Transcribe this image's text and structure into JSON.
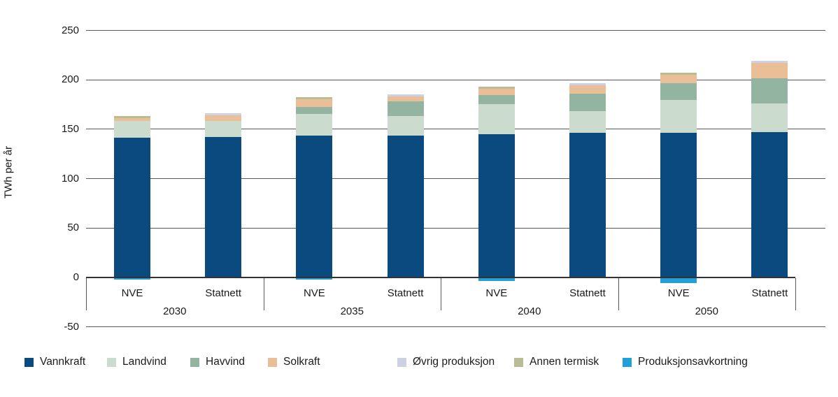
{
  "chart_data": {
    "type": "bar",
    "stacked": true,
    "ylabel": "TWh per år",
    "ylim": [
      -50,
      250
    ],
    "yticks": [
      250,
      200,
      150,
      100,
      50,
      0,
      -50
    ],
    "grid": "horizontal",
    "legend_position": "bottom",
    "groups": [
      "2030",
      "2035",
      "2040",
      "2050"
    ],
    "bar_labels": [
      "NVE",
      "Statnett",
      "NVE",
      "Statnett",
      "NVE",
      "Statnett",
      "NVE",
      "Statnett"
    ],
    "series": [
      {
        "name": "Vannkraft",
        "color": "#0a4a7e",
        "values": [
          141,
          142,
          143,
          143,
          145,
          146,
          146,
          147
        ]
      },
      {
        "name": "Landvind",
        "color": "#cbdccf",
        "values": [
          17,
          16,
          22,
          20,
          30,
          22,
          33,
          29
        ]
      },
      {
        "name": "Havvind",
        "color": "#93b4a1",
        "values": [
          0,
          0,
          7,
          15,
          9,
          18,
          17,
          25
        ]
      },
      {
        "name": "Solkraft",
        "color": "#eabf98",
        "values": [
          3,
          6,
          8,
          5,
          7,
          8,
          9,
          16
        ]
      },
      {
        "name": "Øvrig produksjon",
        "color": "#ccd2e4",
        "values": [
          0,
          2,
          0,
          2,
          0,
          2,
          0,
          2
        ]
      },
      {
        "name": "Annen termisk",
        "color": "#babd94",
        "values": [
          2,
          0,
          2,
          0,
          2,
          0,
          2,
          0
        ]
      },
      {
        "name": "Produksjonsavkortning",
        "color": "#219fd7",
        "values": [
          -2,
          0,
          -2,
          0,
          -3,
          0,
          -5,
          0
        ]
      }
    ]
  },
  "legend": {
    "items": [
      {
        "label": "Vannkraft",
        "color": "#0a4a7e"
      },
      {
        "label": "Landvind",
        "color": "#cbdccf"
      },
      {
        "label": "Havvind",
        "color": "#93b4a1"
      },
      {
        "label": "Solkraft",
        "color": "#eabf98"
      },
      {
        "label": "Øvrig produksjon",
        "color": "#ccd2e4"
      },
      {
        "label": "Annen termisk",
        "color": "#babd94"
      },
      {
        "label": "Produksjonsavkortning",
        "color": "#219fd7"
      }
    ]
  }
}
